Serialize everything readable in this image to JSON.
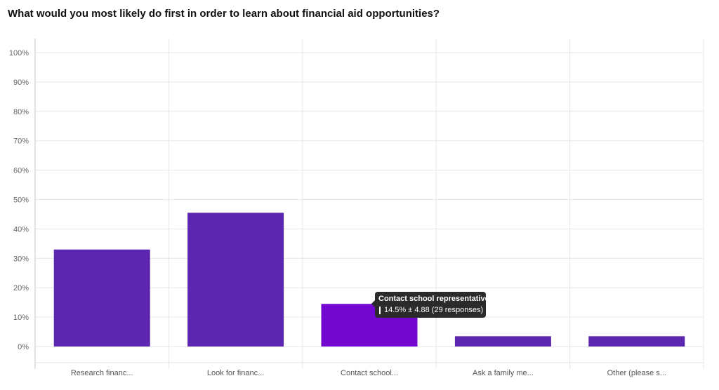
{
  "chart_data": {
    "type": "bar",
    "title": "What would you most likely do first in order to learn about financial aid opportunities?",
    "categories": [
      "Research financ...",
      "Look for financ...",
      "Contact school...",
      "Ask a family me...",
      "Other (please s..."
    ],
    "values": [
      33,
      45.5,
      14.5,
      3.5,
      3.5
    ],
    "y_ticks": [
      "0%",
      "10%",
      "20%",
      "30%",
      "40%",
      "50%",
      "60%",
      "70%",
      "80%",
      "90%",
      "100%"
    ],
    "ylim": [
      0,
      100
    ],
    "grid": true,
    "colors": {
      "bar": "#5c26b0",
      "bar_highlight": "#7208d0"
    },
    "highlighted_index": 2,
    "tooltip": {
      "title": "Contact school representative",
      "value_text": "14.5% ± 4.88 (29 responses)"
    }
  }
}
